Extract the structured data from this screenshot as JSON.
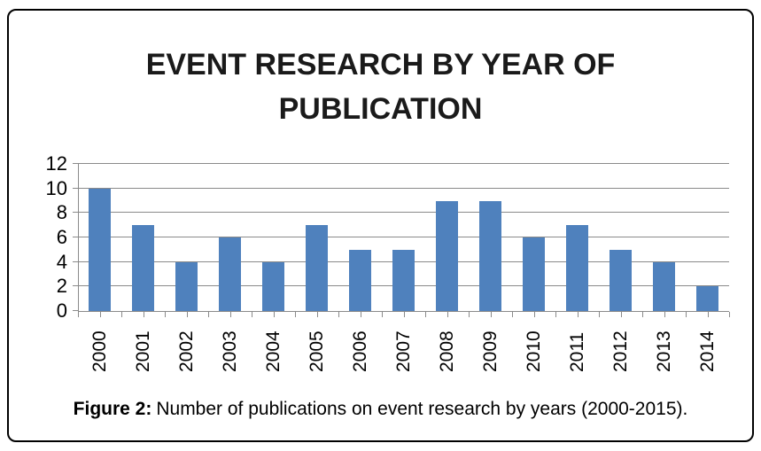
{
  "figure": {
    "caption_label": "Figure 2:",
    "caption_text": "Number of publications on event research by years (2000-2015)."
  },
  "chart_data": {
    "type": "bar",
    "title": "EVENT RESEARCH BY YEAR OF PUBLICATION",
    "categories": [
      "2000",
      "2001",
      "2002",
      "2003",
      "2004",
      "2005",
      "2006",
      "2007",
      "2008",
      "2009",
      "2010",
      "2011",
      "2012",
      "2013",
      "2014"
    ],
    "values": [
      10,
      7,
      4,
      6,
      4,
      7,
      5,
      5,
      9,
      9,
      6,
      7,
      5,
      4,
      2
    ],
    "xlabel": "",
    "ylabel": "",
    "ylim": [
      0,
      12
    ],
    "y_ticks": [
      0,
      2,
      4,
      6,
      8,
      10,
      12
    ],
    "grid": true,
    "legend_position": "none",
    "bar_color": "#4f81bd",
    "axis_color": "#8a8a8a",
    "text_color": "#000000"
  }
}
